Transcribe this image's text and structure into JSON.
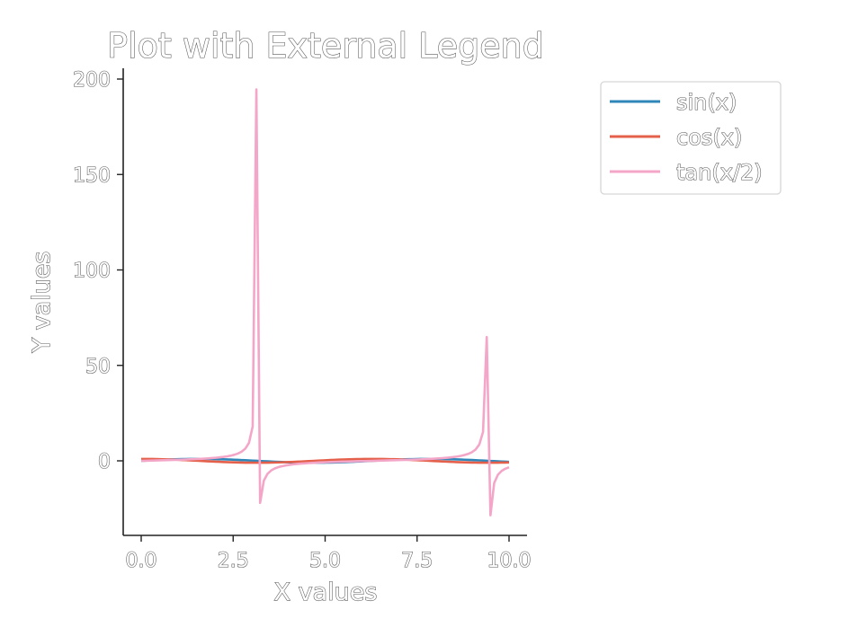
{
  "chart_data": {
    "type": "line",
    "title": "Plot with External Legend",
    "xlabel": "X values",
    "ylabel": "Y values",
    "xlim": [
      -0.5,
      10.5
    ],
    "ylim": [
      -40,
      205
    ],
    "xticks": [
      "0.0",
      "2.5",
      "5.0",
      "7.5",
      "10.0"
    ],
    "xtick_values": [
      0,
      2.5,
      5,
      7.5,
      10
    ],
    "yticks": [
      "0",
      "50",
      "100",
      "150",
      "200"
    ],
    "ytick_values": [
      0,
      50,
      100,
      150,
      200
    ],
    "grid": false,
    "legend_position": "outside-top-right",
    "series": [
      {
        "name": "sin(x)",
        "color": "#2f86b8",
        "fn": "sin"
      },
      {
        "name": "cos(x)",
        "color": "#e5604a",
        "fn": "cos"
      },
      {
        "name": "tan(x/2)",
        "color": "#f4a6c8",
        "fn": "tan_half"
      }
    ],
    "x_range": {
      "start": 0,
      "stop": 10,
      "count": 100
    }
  }
}
